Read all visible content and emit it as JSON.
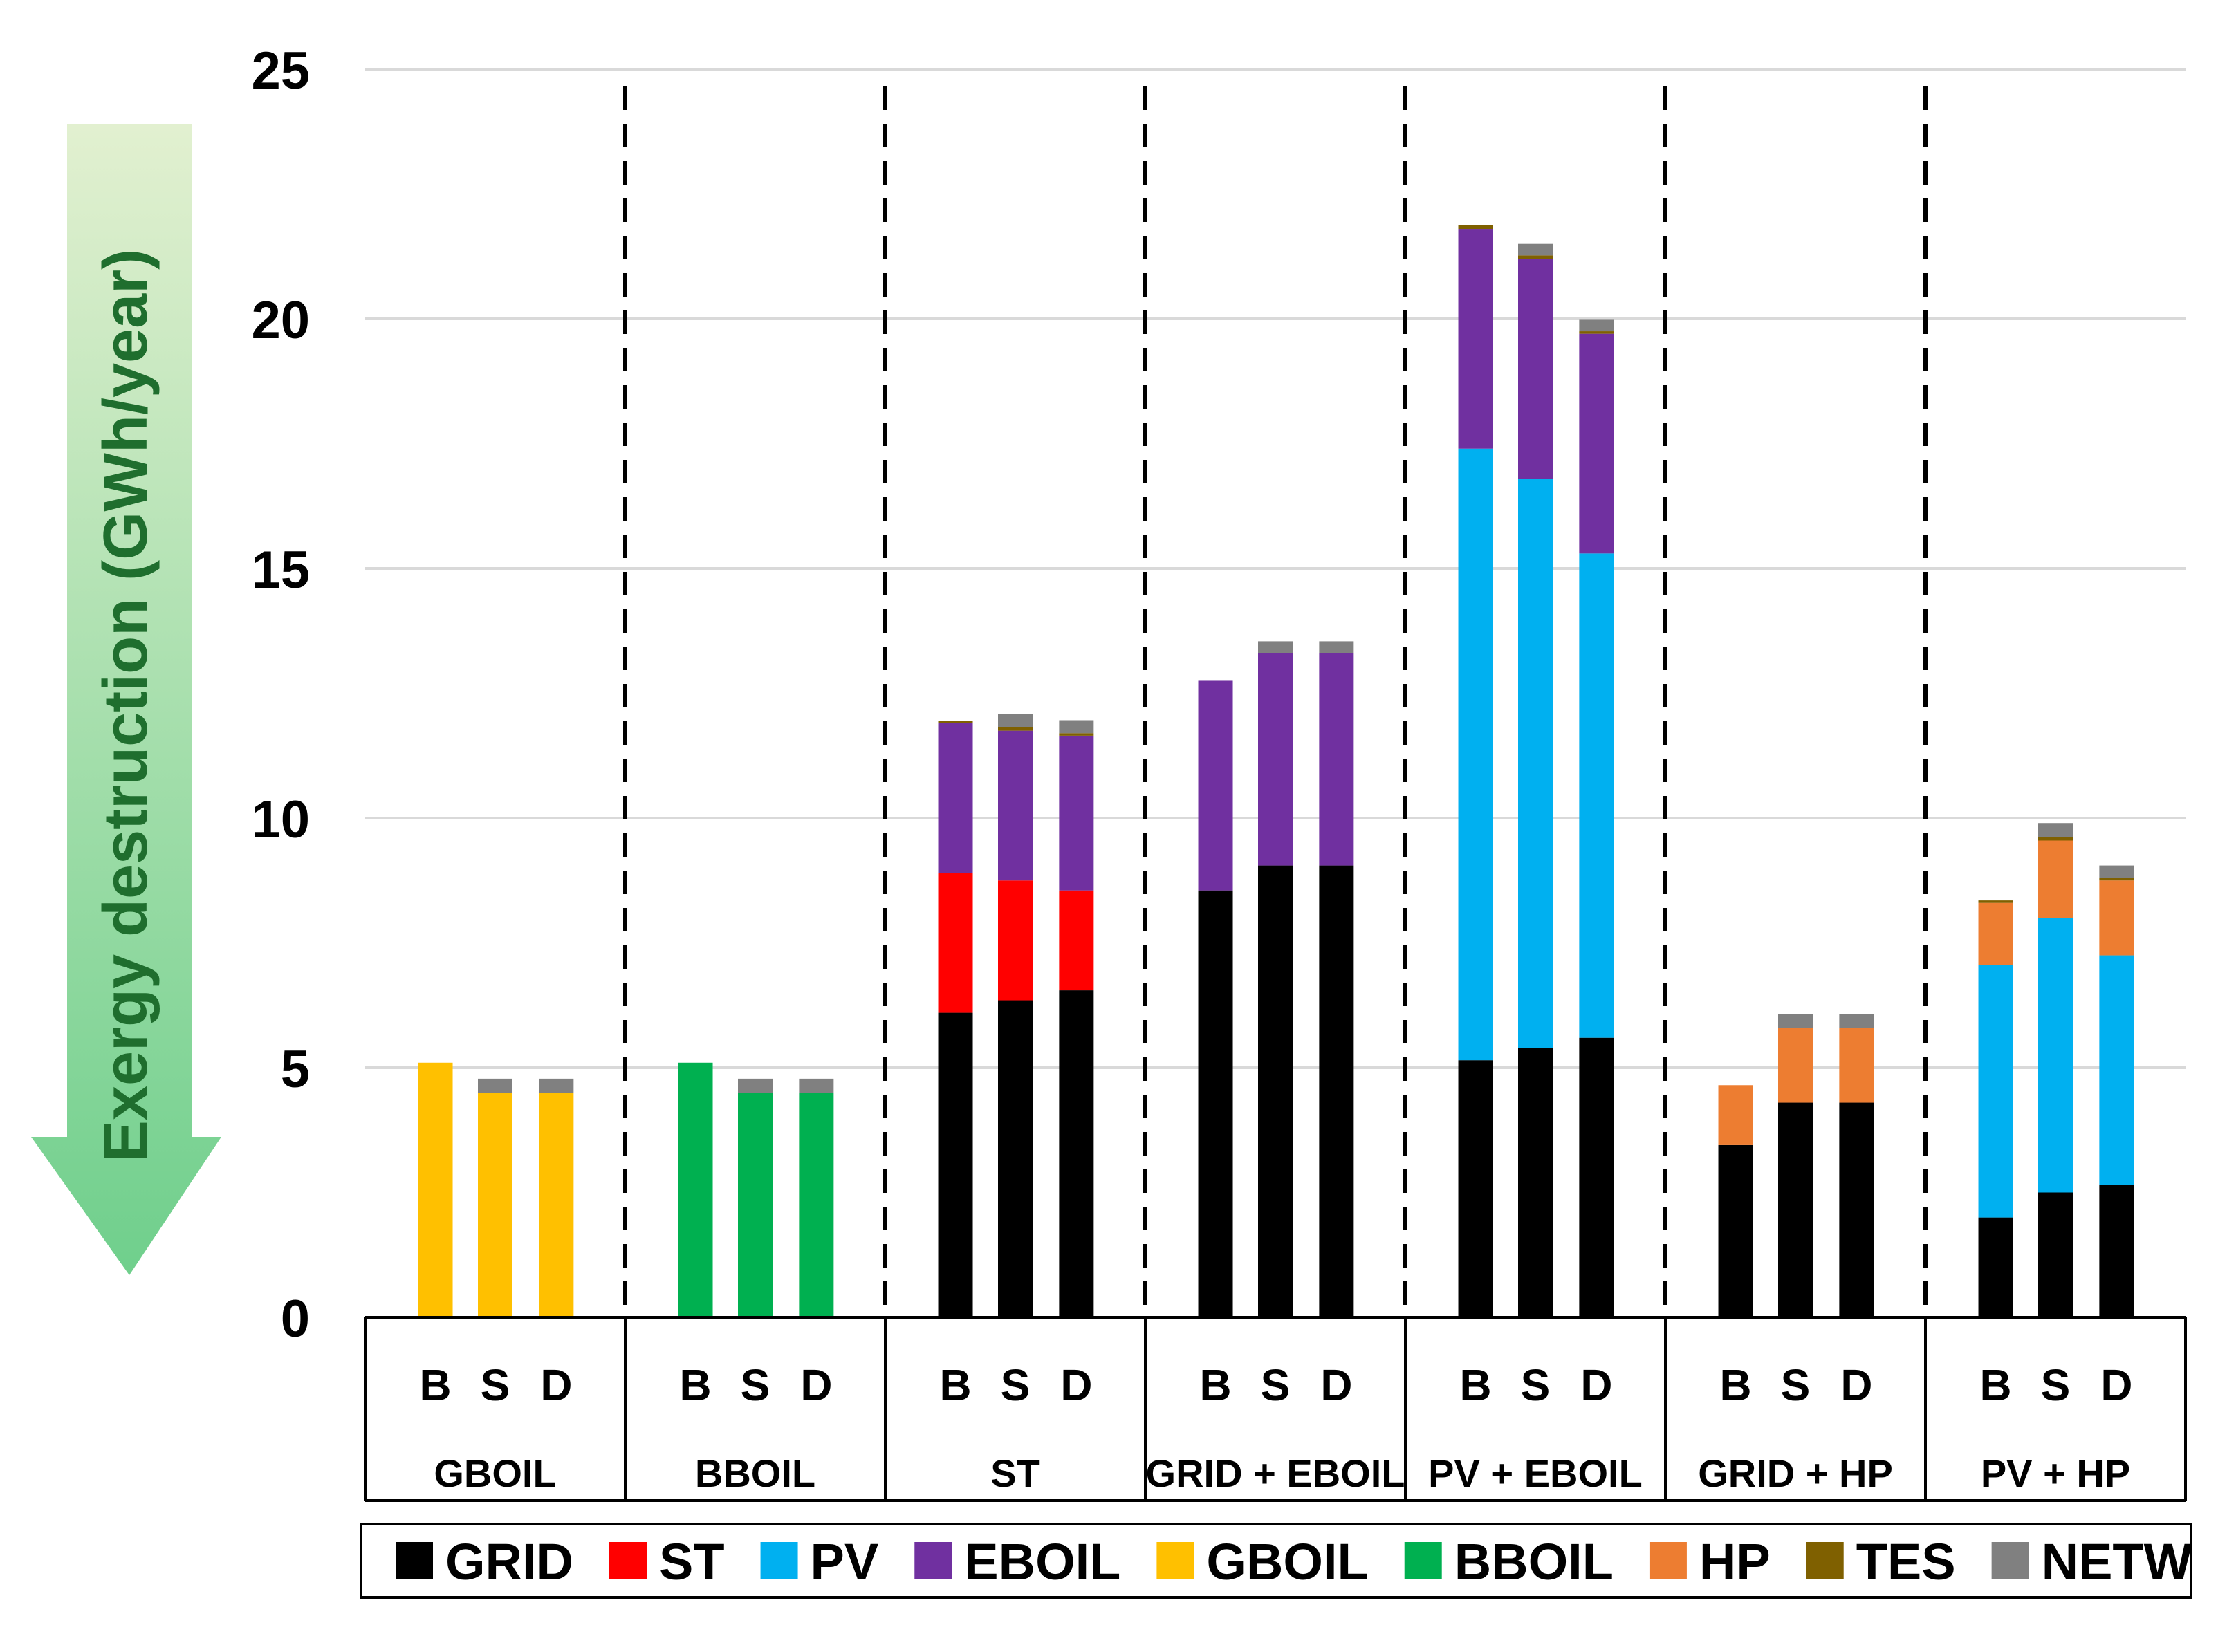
{
  "chart_data": {
    "type": "bar",
    "stacked": true,
    "title": "",
    "xlabel": "",
    "ylabel": "Exergy destruction (GWh/year)",
    "ylim": [
      0,
      25
    ],
    "yticks": [
      "0",
      "5",
      "10",
      "15",
      "20",
      "25"
    ],
    "ytick_values": [
      0,
      5,
      10,
      15,
      20,
      25
    ],
    "grid": true,
    "legend_position": "bottom",
    "arrow_direction": "down",
    "groups": [
      {
        "label": "GBOIL",
        "categories": [
          "B",
          "S",
          "D"
        ]
      },
      {
        "label": "BBOIL",
        "categories": [
          "B",
          "S",
          "D"
        ]
      },
      {
        "label": "ST",
        "categories": [
          "B",
          "S",
          "D"
        ]
      },
      {
        "label": "GRID + EBOIL",
        "categories": [
          "B",
          "S",
          "D"
        ]
      },
      {
        "label": "PV + EBOIL",
        "categories": [
          "B",
          "S",
          "D"
        ]
      },
      {
        "label": "GRID + HP",
        "categories": [
          "B",
          "S",
          "D"
        ]
      },
      {
        "label": "PV + HP",
        "categories": [
          "B",
          "S",
          "D"
        ]
      }
    ],
    "series": [
      {
        "name": "GRID",
        "color": "#000000",
        "values": [
          0,
          0,
          0,
          0,
          0,
          0,
          6.1,
          6.35,
          6.55,
          8.55,
          9.05,
          9.05,
          5.15,
          5.4,
          5.6,
          3.45,
          4.3,
          4.3,
          2.0,
          2.5,
          2.65
        ]
      },
      {
        "name": "ST",
        "color": "#ff0000",
        "values": [
          0,
          0,
          0,
          0,
          0,
          0,
          2.8,
          2.4,
          2.0,
          0,
          0,
          0,
          0,
          0,
          0,
          0,
          0,
          0,
          0,
          0,
          0
        ]
      },
      {
        "name": "PV",
        "color": "#00b0f0",
        "values": [
          0,
          0,
          0,
          0,
          0,
          0,
          0,
          0,
          0,
          0,
          0,
          0,
          12.25,
          11.4,
          9.7,
          0,
          0,
          0,
          5.05,
          5.5,
          4.6
        ]
      },
      {
        "name": "EBOIL",
        "color": "#7030a0",
        "values": [
          0,
          0,
          0,
          0,
          0,
          0,
          3.0,
          3.0,
          3.1,
          4.2,
          4.25,
          4.25,
          4.4,
          4.4,
          4.4,
          0,
          0,
          0,
          0,
          0,
          0
        ]
      },
      {
        "name": "GBOIL",
        "color": "#ffc000",
        "values": [
          5.1,
          4.5,
          4.5,
          0,
          0,
          0,
          0,
          0,
          0,
          0,
          0,
          0,
          0,
          0,
          0,
          0,
          0,
          0,
          0,
          0,
          0
        ]
      },
      {
        "name": "BBOIL",
        "color": "#00b050",
        "values": [
          0,
          0,
          0,
          5.1,
          4.5,
          4.5,
          0,
          0,
          0,
          0,
          0,
          0,
          0,
          0,
          0,
          0,
          0,
          0,
          0,
          0,
          0
        ]
      },
      {
        "name": "HP",
        "color": "#ed7d31",
        "values": [
          0,
          0,
          0,
          0,
          0,
          0,
          0,
          0,
          0,
          0,
          0,
          0,
          0,
          0,
          0,
          1.2,
          1.5,
          1.5,
          1.25,
          1.55,
          1.5
        ]
      },
      {
        "name": "TES",
        "color": "#7f6000",
        "values": [
          0,
          0,
          0,
          0,
          0,
          0,
          0.05,
          0.07,
          0.05,
          0,
          0,
          0,
          0.07,
          0.07,
          0.05,
          0,
          0,
          0,
          0.05,
          0.07,
          0.05
        ]
      },
      {
        "name": "NETW",
        "color": "#808080",
        "values": [
          0,
          0.28,
          0.28,
          0,
          0.28,
          0.28,
          0,
          0.26,
          0.26,
          0,
          0.24,
          0.24,
          0,
          0.23,
          0.23,
          0,
          0.27,
          0.27,
          0,
          0.28,
          0.25
        ]
      }
    ]
  },
  "colors": {
    "grid_line": "#d9d9d9",
    "arrow_top": "#e2f0d0",
    "arrow_bottom": "#6fcf8c",
    "ylabel_color": "#1f6e2e"
  }
}
